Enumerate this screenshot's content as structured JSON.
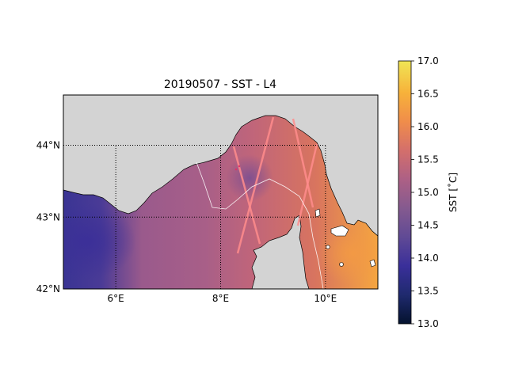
{
  "title": "20190507 - SST - L4",
  "map": {
    "lon_range": [
      5.0,
      11.0
    ],
    "lat_range": [
      42.0,
      44.7
    ],
    "lon_ticks": [
      {
        "value": 6,
        "label": "6°E"
      },
      {
        "value": 8,
        "label": "8°E"
      },
      {
        "value": 10,
        "label": "10°E"
      }
    ],
    "lat_ticks": [
      {
        "value": 42,
        "label": "42°N"
      },
      {
        "value": 43,
        "label": "43°N"
      },
      {
        "value": 44,
        "label": "44°N"
      }
    ],
    "land_color": "#d3d3d3"
  },
  "colorbar": {
    "label": "SST [$^\\circ$C]",
    "label_display": "SST [˚C]",
    "range": [
      13.0,
      17.0
    ],
    "ticks": [
      "13.0",
      "13.5",
      "14.0",
      "14.5",
      "15.0",
      "15.5",
      "16.0",
      "16.5",
      "17.0"
    ],
    "colormap": "thermal",
    "colors": [
      "#04122e",
      "#1f2a6e",
      "#3a2f9a",
      "#604a95",
      "#855a8f",
      "#ad6085",
      "#d46f6b",
      "#f08d4a",
      "#f7b23a",
      "#f0e555"
    ]
  }
}
